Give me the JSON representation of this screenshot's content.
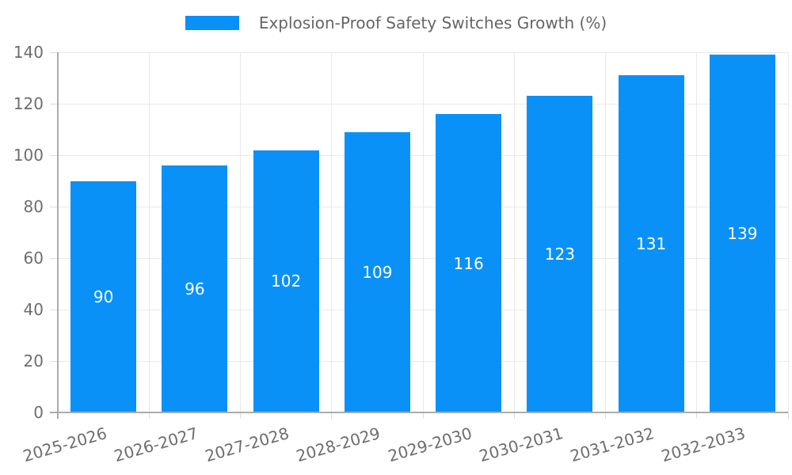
{
  "chart_data": {
    "type": "bar",
    "legend_label": "Explosion-Proof Safety Switches Growth (%)",
    "legend_position": "top",
    "categories": [
      "2025-2026",
      "2026-2027",
      "2027-2028",
      "2028-2029",
      "2029-2030",
      "2030-2031",
      "2031-2032",
      "2032-2033"
    ],
    "values": [
      90,
      96,
      102,
      109,
      116,
      123,
      131,
      139
    ],
    "xlabel": "",
    "ylabel": "",
    "ylim": [
      0,
      140
    ],
    "yticks": [
      0,
      20,
      40,
      60,
      80,
      100,
      120,
      140
    ],
    "grid": true,
    "bar_labels_visible": true,
    "colors": {
      "bar": "#0991f8",
      "bar_label_text": "#ffffff",
      "grid_line": "#e9e9e9",
      "tick_mark": "#dddddd",
      "axis_line": "#acacac",
      "tick_text": "#6e6e6e",
      "legend_text": "#666666"
    }
  }
}
